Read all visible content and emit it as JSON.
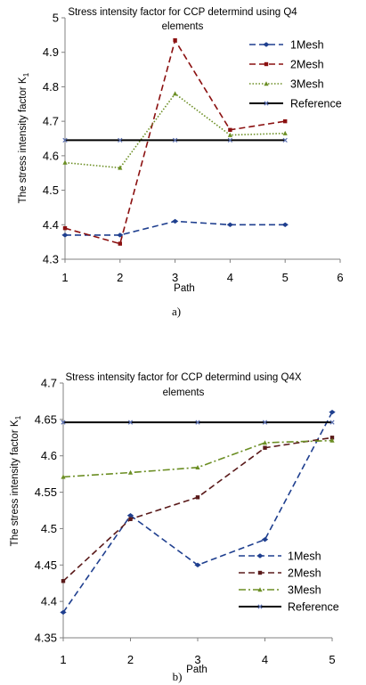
{
  "chart_data": [
    {
      "type": "line",
      "title": "Stress intensity factor for CCP determind using Q4 elements",
      "title_lines": [
        "Stress intensity factor for CCP determind using Q4",
        "elements"
      ],
      "xlabel": "Path",
      "ylabel": "The stress intensity factor K",
      "ylabel_sub": "1",
      "caption": "a)",
      "xlim": [
        1,
        6
      ],
      "ylim": [
        4.3,
        5
      ],
      "xticks": [
        1,
        2,
        3,
        4,
        5,
        6
      ],
      "yticks": [
        4.3,
        4.4,
        4.5,
        4.6,
        4.7,
        4.8,
        4.9,
        5
      ],
      "grid": false,
      "legend": "right",
      "series": [
        {
          "name": "1Mesh",
          "x": [
            1,
            2,
            3,
            4,
            5
          ],
          "values": [
            4.37,
            4.37,
            4.41,
            4.4,
            4.4
          ],
          "color": "#1f3f8f",
          "dash": "7,4"
        },
        {
          "name": "2Mesh",
          "x": [
            1,
            2,
            3,
            4,
            5
          ],
          "values": [
            4.39,
            4.345,
            4.935,
            4.675,
            4.7
          ],
          "color": "#8b1010",
          "dash": "7,4"
        },
        {
          "name": "3Mesh",
          "x": [
            1,
            2,
            3,
            4,
            5
          ],
          "values": [
            4.58,
            4.565,
            4.78,
            4.66,
            4.665
          ],
          "color": "#6b8e23",
          "dash": "1.5,2"
        },
        {
          "name": "Reference",
          "x": [
            1,
            2,
            3,
            4,
            5
          ],
          "values": [
            4.645,
            4.645,
            4.645,
            4.645,
            4.645
          ],
          "color": "#000000",
          "dash": ""
        }
      ]
    },
    {
      "type": "line",
      "title": "Stress intensity factor for CCP determind using Q4X elements",
      "title_lines": [
        "Stress intensity factor for CCP determind using Q4X",
        "elements"
      ],
      "xlabel": "Path",
      "ylabel": "The stress intensity factor K",
      "ylabel_sub": "1",
      "caption": "b)",
      "xlim": [
        1,
        5
      ],
      "ylim": [
        4.35,
        4.7
      ],
      "xticks": [
        1,
        2,
        3,
        4,
        5
      ],
      "yticks": [
        4.35,
        4.4,
        4.45,
        4.5,
        4.55,
        4.6,
        4.65,
        4.7
      ],
      "grid": false,
      "legend": "bottom-right",
      "series": [
        {
          "name": "1Mesh",
          "x": [
            1,
            2,
            3,
            4,
            5
          ],
          "values": [
            4.385,
            4.518,
            4.45,
            4.485,
            4.66
          ],
          "color": "#1f3f8f",
          "dash": "7,4"
        },
        {
          "name": "2Mesh",
          "x": [
            1,
            2,
            3,
            4,
            5
          ],
          "values": [
            4.428,
            4.513,
            4.543,
            4.611,
            4.625
          ],
          "color": "#5a1a1a",
          "dash": "7,4"
        },
        {
          "name": "3Mesh",
          "x": [
            1,
            2,
            3,
            4,
            5
          ],
          "values": [
            4.571,
            4.577,
            4.584,
            4.618,
            4.621
          ],
          "color": "#6b8e23",
          "dash": "8,3,2,3"
        },
        {
          "name": "Reference",
          "x": [
            1,
            2,
            3,
            4,
            5
          ],
          "values": [
            4.646,
            4.646,
            4.646,
            4.646,
            4.646
          ],
          "color": "#000000",
          "dash": ""
        }
      ]
    }
  ]
}
